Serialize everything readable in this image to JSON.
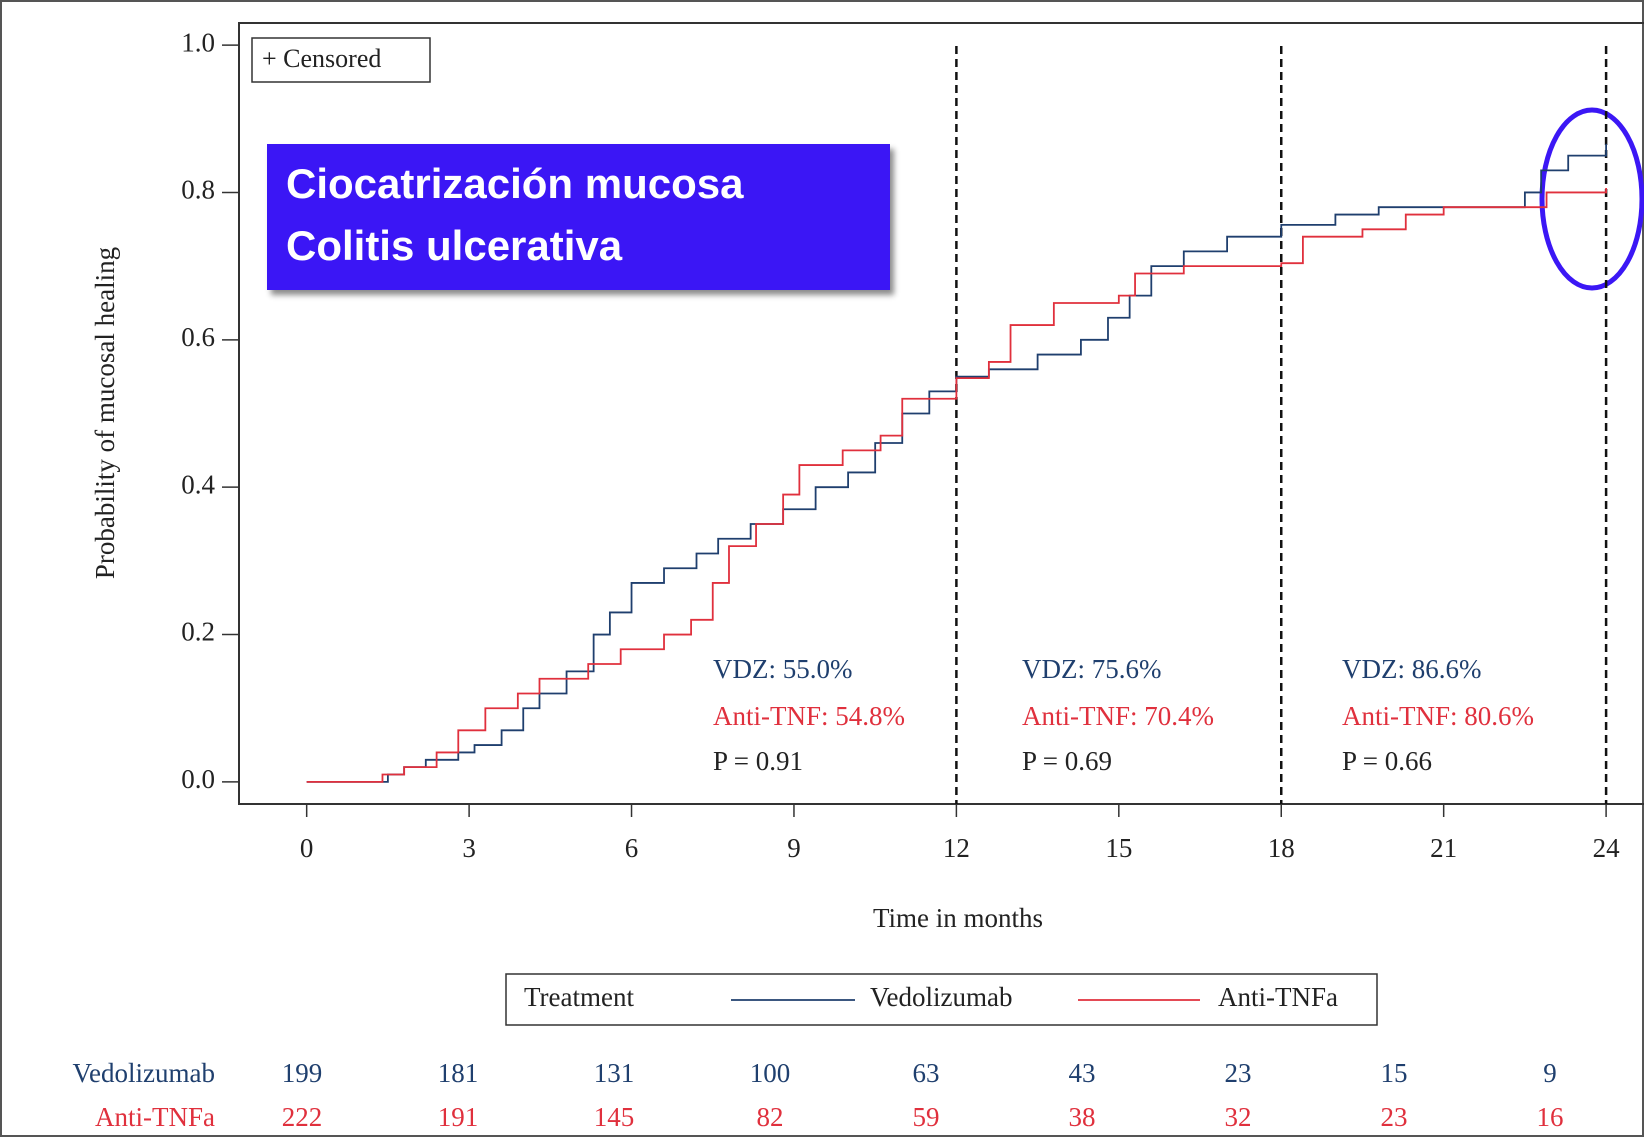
{
  "chart_data": {
    "type": "step",
    "x_label": "Time in months",
    "y_label": "Probability of mucosal healing",
    "xlim": [
      -1.25,
      24.7
    ],
    "ylim": [
      -0.03,
      1.03
    ],
    "xticks": [
      0,
      3,
      6,
      9,
      12,
      15,
      18,
      21,
      24
    ],
    "yticks": [
      {
        "value": 0,
        "label": "0.0"
      },
      {
        "value": 0.2,
        "label": "0.2"
      },
      {
        "value": 0.4,
        "label": "0.4"
      },
      {
        "value": 0.6,
        "label": "0.6"
      },
      {
        "value": 0.8,
        "label": "0.8"
      },
      {
        "value": 1,
        "label": "1.0"
      }
    ],
    "reference_lines": [
      12,
      18,
      24
    ],
    "censor_legend": "+ Censored",
    "overlay_title": [
      "Ciocatrización mucosa",
      "Colitis ulcerativa"
    ],
    "legend_title": "Treatment",
    "series": [
      {
        "name": "Vedolizumab",
        "color": "#1f3f6e",
        "x": [
          0,
          1.5,
          1.8,
          2.2,
          2.8,
          3.1,
          3.6,
          4.0,
          4.3,
          4.8,
          5.3,
          5.6,
          6.0,
          6.6,
          7.2,
          7.6,
          8.2,
          8.8,
          9.4,
          10.0,
          10.5,
          11.0,
          11.5,
          12.0,
          12.6,
          13.5,
          14.3,
          14.8,
          15.2,
          15.6,
          16.2,
          17.0,
          18.0,
          19.0,
          19.8,
          22.5,
          22.8,
          23.3,
          24.0
        ],
        "values": [
          0,
          0.01,
          0.02,
          0.03,
          0.04,
          0.05,
          0.07,
          0.1,
          0.12,
          0.15,
          0.2,
          0.23,
          0.27,
          0.29,
          0.31,
          0.33,
          0.35,
          0.37,
          0.4,
          0.42,
          0.46,
          0.5,
          0.53,
          0.55,
          0.56,
          0.58,
          0.6,
          0.63,
          0.66,
          0.7,
          0.72,
          0.74,
          0.756,
          0.77,
          0.78,
          0.8,
          0.83,
          0.85,
          0.866
        ]
      },
      {
        "name": "Anti-TNFa",
        "color": "#e0303d",
        "x": [
          0,
          1.4,
          1.8,
          2.4,
          2.8,
          3.3,
          3.9,
          4.3,
          5.2,
          5.8,
          6.6,
          7.1,
          7.5,
          7.8,
          8.3,
          8.8,
          9.1,
          9.9,
          10.6,
          11.0,
          12.0,
          12.6,
          13.0,
          13.8,
          15.0,
          15.3,
          16.2,
          18.0,
          18.4,
          19.5,
          20.3,
          21.0,
          22.9,
          24.0
        ],
        "values": [
          0,
          0.01,
          0.02,
          0.04,
          0.07,
          0.1,
          0.12,
          0.14,
          0.16,
          0.18,
          0.2,
          0.22,
          0.27,
          0.32,
          0.35,
          0.39,
          0.43,
          0.45,
          0.47,
          0.52,
          0.548,
          0.57,
          0.62,
          0.65,
          0.66,
          0.69,
          0.7,
          0.704,
          0.74,
          0.75,
          0.77,
          0.78,
          0.8,
          0.806
        ]
      }
    ],
    "annotations": [
      [
        "VDZ: 55.0%",
        "Anti-TNF: 54.8%",
        "P = 0.91"
      ],
      [
        "VDZ: 75.6%",
        "Anti-TNF: 70.4%",
        "P = 0.69"
      ],
      [
        "VDZ: 86.6%",
        "Anti-TNF: 80.6%",
        "P = 0.66"
      ]
    ],
    "risk_table": [
      {
        "name": "Vedolizumab",
        "color": "#1f3f6e",
        "values": [
          199,
          181,
          131,
          100,
          63,
          43,
          23,
          15,
          9
        ]
      },
      {
        "name": "Anti-TNFa",
        "color": "#e0303d",
        "values": [
          222,
          191,
          145,
          82,
          59,
          38,
          32,
          23,
          16
        ]
      }
    ]
  }
}
